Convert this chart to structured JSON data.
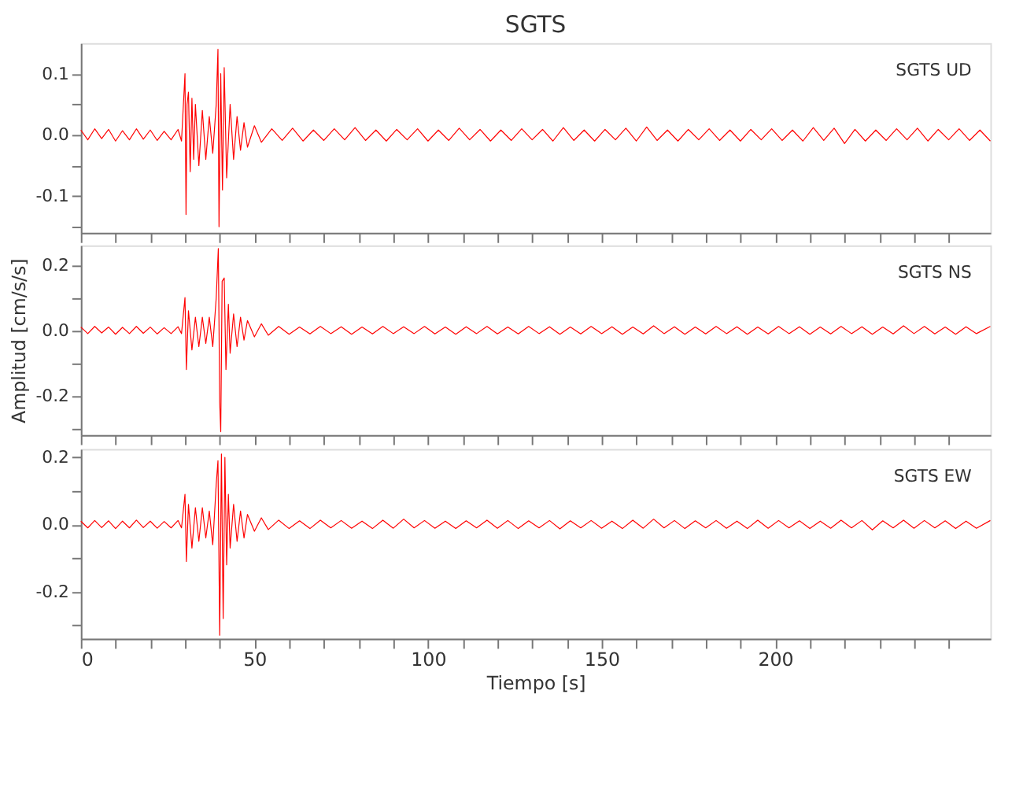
{
  "chart_data": [
    {
      "type": "line",
      "title": "SGTS",
      "annotations": [
        "SGTS UD"
      ],
      "tick_labels": "y",
      "grid": false,
      "xlim": [
        0,
        262
      ],
      "ylim": [
        -0.16,
        0.15
      ],
      "xticks": [
        {
          "value": 0,
          "label": null
        },
        {
          "value": 10,
          "label": null
        },
        {
          "value": 20,
          "label": null
        },
        {
          "value": 30,
          "label": null
        },
        {
          "value": 40,
          "label": null
        },
        {
          "value": 50,
          "label": null
        },
        {
          "value": 60,
          "label": null
        },
        {
          "value": 70,
          "label": null
        },
        {
          "value": 80,
          "label": null
        },
        {
          "value": 90,
          "label": null
        },
        {
          "value": 100,
          "label": null
        },
        {
          "value": 110,
          "label": null
        },
        {
          "value": 120,
          "label": null
        },
        {
          "value": 130,
          "label": null
        },
        {
          "value": 140,
          "label": null
        },
        {
          "value": 150,
          "label": null
        },
        {
          "value": 160,
          "label": null
        },
        {
          "value": 170,
          "label": null
        },
        {
          "value": 180,
          "label": null
        },
        {
          "value": 190,
          "label": null
        },
        {
          "value": 200,
          "label": null
        },
        {
          "value": 210,
          "label": null
        },
        {
          "value": 220,
          "label": null
        },
        {
          "value": 230,
          "label": null
        },
        {
          "value": 240,
          "label": null
        },
        {
          "value": 250,
          "label": null
        }
      ],
      "yticks": [
        {
          "value": -0.15,
          "label": null
        },
        {
          "value": -0.1,
          "label": "-0.1"
        },
        {
          "value": -0.05,
          "label": null
        },
        {
          "value": 0,
          "label": "0.0"
        },
        {
          "value": 0.05,
          "label": null
        },
        {
          "value": 0.1,
          "label": "0.1"
        }
      ],
      "x": [
        0,
        2,
        4,
        6,
        8,
        10,
        12,
        14,
        16,
        18,
        20,
        22,
        24,
        26,
        28,
        29,
        30,
        30.3,
        30.6,
        31,
        31.5,
        32,
        32.5,
        33,
        34,
        35,
        36,
        37,
        38,
        39,
        39.5,
        39.8,
        40.3,
        40.8,
        41.3,
        42,
        43,
        44,
        45,
        46,
        47,
        48,
        50,
        52,
        55,
        58,
        61,
        64,
        67,
        70,
        73,
        76,
        79,
        82,
        85,
        88,
        91,
        94,
        97,
        100,
        103,
        106,
        109,
        112,
        115,
        118,
        121,
        124,
        127,
        130,
        133,
        136,
        139,
        142,
        145,
        148,
        151,
        154,
        157,
        160,
        163,
        166,
        169,
        172,
        175,
        178,
        181,
        184,
        187,
        190,
        193,
        196,
        199,
        202,
        205,
        208,
        211,
        214,
        217,
        220,
        223,
        226,
        229,
        232,
        235,
        238,
        241,
        244,
        247,
        250,
        253,
        256,
        259,
        262
      ],
      "series": [
        {
          "color": "#ff0000",
          "values": [
            0.008,
            -0.008,
            0.01,
            -0.006,
            0.009,
            -0.01,
            0.007,
            -0.008,
            0.01,
            -0.007,
            0.008,
            -0.009,
            0.006,
            -0.008,
            0.009,
            -0.01,
            0.1,
            -0.13,
            0.05,
            0.07,
            -0.06,
            0.06,
            -0.04,
            0.05,
            -0.05,
            0.04,
            -0.04,
            0.03,
            -0.03,
            0.05,
            0.14,
            -0.15,
            0.1,
            -0.09,
            0.11,
            -0.07,
            0.05,
            -0.04,
            0.03,
            -0.025,
            0.02,
            -0.02,
            0.015,
            -0.012,
            0.01,
            -0.009,
            0.011,
            -0.01,
            0.008,
            -0.009,
            0.01,
            -0.008,
            0.012,
            -0.009,
            0.008,
            -0.01,
            0.009,
            -0.008,
            0.01,
            -0.01,
            0.008,
            -0.009,
            0.011,
            -0.008,
            0.009,
            -0.01,
            0.008,
            -0.009,
            0.01,
            -0.008,
            0.009,
            -0.01,
            0.012,
            -0.009,
            0.008,
            -0.01,
            0.009,
            -0.008,
            0.011,
            -0.01,
            0.013,
            -0.009,
            0.008,
            -0.01,
            0.009,
            -0.008,
            0.01,
            -0.009,
            0.008,
            -0.01,
            0.009,
            -0.008,
            0.01,
            -0.009,
            0.008,
            -0.01,
            0.012,
            -0.009,
            0.011,
            -0.014,
            0.009,
            -0.01,
            0.008,
            -0.009,
            0.01,
            -0.008,
            0.011,
            -0.01,
            0.009,
            -0.008,
            0.01,
            -0.009,
            0.008,
            -0.01
          ]
        }
      ]
    },
    {
      "type": "line",
      "ylabel": "Amplitud [cm/s/s]",
      "annotations": [
        "SGTS NS"
      ],
      "tick_labels": "y",
      "grid": false,
      "xlim": [
        0,
        262
      ],
      "ylim": [
        -0.32,
        0.26
      ],
      "xticks": [
        {
          "value": 0,
          "label": null
        },
        {
          "value": 10,
          "label": null
        },
        {
          "value": 20,
          "label": null
        },
        {
          "value": 30,
          "label": null
        },
        {
          "value": 40,
          "label": null
        },
        {
          "value": 50,
          "label": null
        },
        {
          "value": 60,
          "label": null
        },
        {
          "value": 70,
          "label": null
        },
        {
          "value": 80,
          "label": null
        },
        {
          "value": 90,
          "label": null
        },
        {
          "value": 100,
          "label": null
        },
        {
          "value": 110,
          "label": null
        },
        {
          "value": 120,
          "label": null
        },
        {
          "value": 130,
          "label": null
        },
        {
          "value": 140,
          "label": null
        },
        {
          "value": 150,
          "label": null
        },
        {
          "value": 160,
          "label": null
        },
        {
          "value": 170,
          "label": null
        },
        {
          "value": 180,
          "label": null
        },
        {
          "value": 190,
          "label": null
        },
        {
          "value": 200,
          "label": null
        },
        {
          "value": 210,
          "label": null
        },
        {
          "value": 220,
          "label": null
        },
        {
          "value": 230,
          "label": null
        },
        {
          "value": 240,
          "label": null
        },
        {
          "value": 250,
          "label": null
        }
      ],
      "yticks": [
        {
          "value": -0.3,
          "label": null
        },
        {
          "value": -0.2,
          "label": "-0.2"
        },
        {
          "value": -0.1,
          "label": null
        },
        {
          "value": 0,
          "label": "0.0"
        },
        {
          "value": 0.1,
          "label": null
        },
        {
          "value": 0.2,
          "label": "0.2"
        }
      ],
      "x": [
        0,
        2,
        4,
        6,
        8,
        10,
        12,
        14,
        16,
        18,
        20,
        22,
        24,
        26,
        28,
        29,
        30,
        30.4,
        31,
        32,
        33,
        34,
        35,
        36,
        37,
        38,
        39,
        39.6,
        40,
        40.3,
        40.7,
        41.3,
        41.8,
        42.5,
        43,
        44,
        45,
        46,
        47,
        48,
        50,
        52,
        54,
        57,
        60,
        63,
        66,
        69,
        72,
        75,
        78,
        81,
        84,
        87,
        90,
        93,
        96,
        99,
        102,
        105,
        108,
        111,
        114,
        117,
        120,
        123,
        126,
        129,
        132,
        135,
        138,
        141,
        144,
        147,
        150,
        153,
        156,
        159,
        162,
        165,
        168,
        171,
        174,
        177,
        180,
        183,
        186,
        189,
        192,
        195,
        198,
        201,
        204,
        207,
        210,
        213,
        216,
        219,
        222,
        225,
        228,
        231,
        234,
        237,
        240,
        243,
        246,
        249,
        252,
        255,
        258,
        262
      ],
      "series": [
        {
          "color": "#ff0000",
          "values": [
            0.01,
            -0.01,
            0.012,
            -0.008,
            0.01,
            -0.012,
            0.009,
            -0.01,
            0.012,
            -0.009,
            0.01,
            -0.011,
            0.008,
            -0.01,
            0.011,
            -0.01,
            0.1,
            -0.12,
            0.06,
            -0.06,
            0.04,
            -0.05,
            0.04,
            -0.04,
            0.04,
            -0.05,
            0.1,
            0.25,
            -0.22,
            -0.31,
            0.15,
            0.16,
            -0.12,
            0.08,
            -0.07,
            0.05,
            -0.05,
            0.04,
            -0.03,
            0.03,
            -0.02,
            0.02,
            -0.015,
            0.012,
            -0.012,
            0.01,
            -0.011,
            0.012,
            -0.01,
            0.011,
            -0.012,
            0.01,
            -0.011,
            0.012,
            -0.01,
            0.011,
            -0.01,
            0.012,
            -0.011,
            0.01,
            -0.012,
            0.011,
            -0.01,
            0.012,
            -0.011,
            0.01,
            -0.011,
            0.012,
            -0.01,
            0.011,
            -0.012,
            0.01,
            -0.011,
            0.012,
            -0.01,
            0.011,
            -0.012,
            0.01,
            -0.011,
            0.014,
            -0.01,
            0.011,
            -0.012,
            0.01,
            -0.011,
            0.012,
            -0.01,
            0.011,
            -0.012,
            0.01,
            -0.011,
            0.012,
            -0.01,
            0.011,
            -0.012,
            0.01,
            -0.011,
            0.012,
            -0.01,
            0.011,
            -0.012,
            0.01,
            -0.011,
            0.014,
            -0.01,
            0.012,
            -0.011,
            0.01,
            -0.012,
            0.011,
            -0.01,
            0.012
          ]
        }
      ]
    },
    {
      "type": "line",
      "xlabel": "Tiempo [s]",
      "annotations": [
        "SGTS EW"
      ],
      "grid": false,
      "xlim": [
        0,
        262
      ],
      "ylim": [
        -0.34,
        0.225
      ],
      "xticks": [
        0,
        {
          "value": 10,
          "label": null
        },
        {
          "value": 20,
          "label": null
        },
        {
          "value": 30,
          "label": null
        },
        {
          "value": 40,
          "label": null
        },
        50,
        {
          "value": 60,
          "label": null
        },
        {
          "value": 70,
          "label": null
        },
        {
          "value": 80,
          "label": null
        },
        {
          "value": 90,
          "label": null
        },
        100,
        {
          "value": 110,
          "label": null
        },
        {
          "value": 120,
          "label": null
        },
        {
          "value": 130,
          "label": null
        },
        {
          "value": 140,
          "label": null
        },
        150,
        {
          "value": 160,
          "label": null
        },
        {
          "value": 170,
          "label": null
        },
        {
          "value": 180,
          "label": null
        },
        {
          "value": 190,
          "label": null
        },
        200,
        {
          "value": 210,
          "label": null
        },
        {
          "value": 220,
          "label": null
        },
        {
          "value": 230,
          "label": null
        },
        {
          "value": 240,
          "label": null
        },
        {
          "value": 250,
          "label": null
        }
      ],
      "yticks": [
        {
          "value": -0.3,
          "label": null
        },
        {
          "value": -0.2,
          "label": "-0.2"
        },
        {
          "value": -0.1,
          "label": null
        },
        {
          "value": 0,
          "label": "0.0"
        },
        {
          "value": 0.1,
          "label": null
        },
        {
          "value": 0.2,
          "label": "0.2"
        }
      ],
      "x": [
        0,
        2,
        4,
        6,
        8,
        10,
        12,
        14,
        16,
        18,
        20,
        22,
        24,
        26,
        28,
        29,
        30,
        30.4,
        31,
        32,
        33,
        34,
        35,
        36,
        37,
        38,
        39,
        39.5,
        40,
        40.5,
        41,
        41.5,
        42,
        42.5,
        43,
        44,
        45,
        46,
        47,
        48,
        50,
        52,
        54,
        57,
        60,
        63,
        66,
        69,
        72,
        75,
        78,
        81,
        84,
        87,
        90,
        93,
        96,
        99,
        102,
        105,
        108,
        111,
        114,
        117,
        120,
        123,
        126,
        129,
        132,
        135,
        138,
        141,
        144,
        147,
        150,
        153,
        156,
        159,
        162,
        165,
        168,
        171,
        174,
        177,
        180,
        183,
        186,
        189,
        192,
        195,
        198,
        201,
        204,
        207,
        210,
        213,
        216,
        219,
        222,
        225,
        228,
        231,
        234,
        237,
        240,
        243,
        246,
        249,
        252,
        255,
        258,
        262
      ],
      "series": [
        {
          "color": "#ff0000",
          "values": [
            0.01,
            -0.01,
            0.012,
            -0.009,
            0.011,
            -0.012,
            0.01,
            -0.01,
            0.013,
            -0.009,
            0.01,
            -0.011,
            0.009,
            -0.01,
            0.012,
            -0.01,
            0.09,
            -0.11,
            0.06,
            -0.07,
            0.05,
            -0.05,
            0.05,
            -0.04,
            0.04,
            -0.06,
            0.12,
            0.19,
            -0.33,
            0.21,
            -0.28,
            0.2,
            -0.12,
            0.09,
            -0.07,
            0.06,
            -0.05,
            0.04,
            -0.04,
            0.03,
            -0.02,
            0.02,
            -0.015,
            0.013,
            -0.012,
            0.011,
            -0.012,
            0.013,
            -0.01,
            0.012,
            -0.011,
            0.01,
            -0.012,
            0.013,
            -0.011,
            0.016,
            -0.01,
            0.012,
            -0.011,
            0.01,
            -0.012,
            0.011,
            -0.01,
            0.013,
            -0.011,
            0.012,
            -0.012,
            0.011,
            -0.01,
            0.012,
            -0.013,
            0.011,
            -0.01,
            0.012,
            -0.011,
            0.01,
            -0.012,
            0.013,
            -0.011,
            0.016,
            -0.01,
            0.012,
            -0.012,
            0.011,
            -0.01,
            0.012,
            -0.011,
            0.01,
            -0.012,
            0.013,
            -0.011,
            0.012,
            -0.01,
            0.011,
            -0.012,
            0.01,
            -0.011,
            0.013,
            -0.01,
            0.012,
            -0.016,
            0.011,
            -0.01,
            0.013,
            -0.011,
            0.012,
            -0.01,
            0.011,
            -0.012,
            0.01,
            -0.011,
            0.012
          ]
        }
      ]
    }
  ]
}
